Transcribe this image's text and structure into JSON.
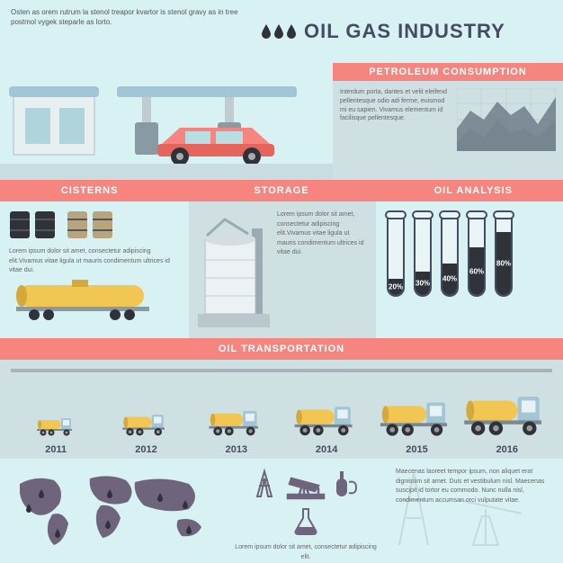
{
  "header": {
    "intro_text": "Osten as orem rutrum la stenol treapor kvartor is stenol gravy as in tree postmol vygek steparle as lorto.",
    "title": "OIL GAS INDUSTRY",
    "drop_color": "#30323a",
    "drop_count": 3
  },
  "petroleum": {
    "banner": "PETROLEUM CONSUMPTION",
    "text": "Interdum porta, dantes et velit eleifend pellentesque odio adi ferme, euismod mi eu sapien. Vivamus elementum id facilisque pellentesque.",
    "chart": {
      "type": "area",
      "series": [
        {
          "color": "#6e7d88",
          "points": [
            0,
            45,
            15,
            25,
            30,
            35,
            45,
            15,
            60,
            30,
            75,
            20,
            90,
            40,
            110,
            10
          ]
        },
        {
          "color": "#a8b4bc",
          "points": [
            0,
            60,
            15,
            45,
            30,
            55,
            45,
            35,
            60,
            50,
            75,
            45,
            90,
            55,
            110,
            35
          ]
        }
      ],
      "width": 110,
      "height": 70,
      "grid_color": "#b0c4c6"
    }
  },
  "sections": {
    "cisterns": {
      "label": "CISTERNS"
    },
    "storage": {
      "label": "STORAGE"
    },
    "analysis": {
      "label": "OIL ANALYSIS"
    }
  },
  "cisterns": {
    "text": "Lorem ipsum dolor sit amet, consectetur adipiscing elit.Vivamus vitae ligula ut mauris condimentum ultrices id vitae dui.",
    "barrels": {
      "dark_count": 2,
      "brown_count": 2
    },
    "tank_color": "#f2c653"
  },
  "storage": {
    "text": "Lorem ipsum dolor sit amet, consectetur adipiscing elit.Vivamus vitae ligula ut mauris condimentum ultrices id vitae dui.",
    "tank_color": "#cfd8dc"
  },
  "analysis": {
    "type": "bar",
    "tubes": [
      {
        "percent": 20,
        "label": "20%"
      },
      {
        "percent": 30,
        "label": "30%"
      },
      {
        "percent": 40,
        "label": "40%"
      },
      {
        "percent": 60,
        "label": "60%"
      },
      {
        "percent": 80,
        "label": "80%"
      }
    ],
    "fill_color": "#30323a",
    "tube_border": "#434c60"
  },
  "transport": {
    "banner": "OIL TRANSPORTATION",
    "trucks": [
      {
        "year": "2011",
        "scale": 0.5
      },
      {
        "year": "2012",
        "scale": 0.6
      },
      {
        "year": "2013",
        "scale": 0.7
      },
      {
        "year": "2014",
        "scale": 0.82
      },
      {
        "year": "2015",
        "scale": 0.95
      },
      {
        "year": "2016",
        "scale": 1.1
      }
    ],
    "truck_cab_color": "#a3c6d6",
    "truck_tank_color": "#f2c653"
  },
  "bottom": {
    "map_color": "#6e657d",
    "drop_color": "#30323a",
    "icons": [
      "derrick",
      "pumpjack",
      "refinery",
      "flask"
    ],
    "icon_color": "#6e657d",
    "text1": "Lorem ipsum dolor sit amet, consectetur adipiscing elit.",
    "text2": "Maecenas laoreet tempor ipsum, non aliquet erat dignissim sit amet. Duis et vestibulum nisl. Maecenas suscipit id tortor eu commodo. Nunc nulla nisl, condimentum accumsan orci vulputate vitae."
  },
  "colors": {
    "banner_bg": "#f5857e",
    "panel_light": "#d8f1f2",
    "panel_dark": "#cfe0e2",
    "text_heading": "#434c60"
  }
}
